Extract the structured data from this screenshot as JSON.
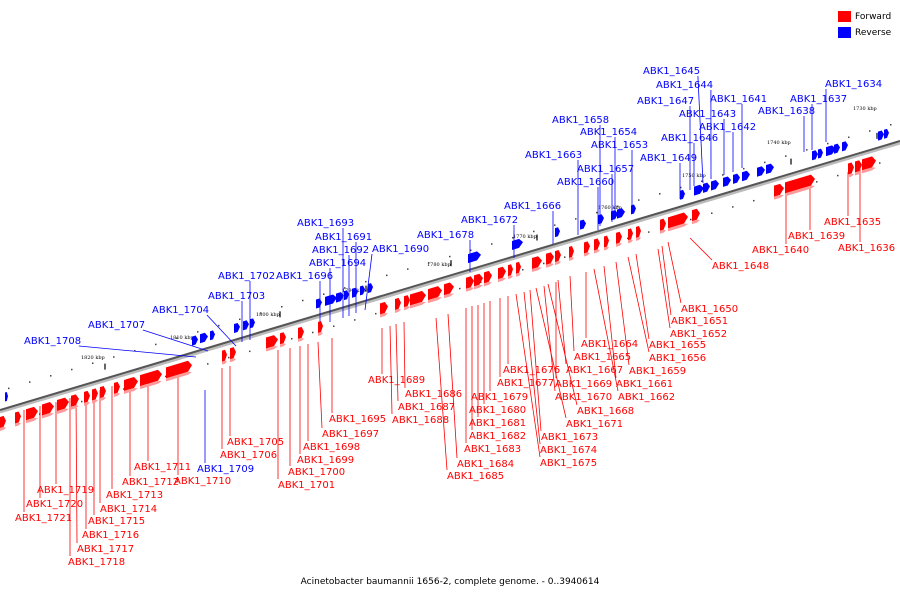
{
  "caption": "Acinetobacter baumannii 1656-2, complete genome. - 0..3940614",
  "legend": {
    "forward_label": "Forward",
    "forward_color": "#ff0000",
    "reverse_label": "Reverse",
    "reverse_color": "#0000ff"
  },
  "ticks": [
    "1730 kbp",
    "1740 kbp",
    "1750 kbp",
    "1760 kbp",
    "1770 kbp",
    "1780 kbp",
    "1790 kbp",
    "1800 kbp",
    "1810 kbp",
    "1820 kbp"
  ],
  "reverse_genes": [
    "ABK1_1634",
    "ABK1_1637",
    "ABK1_1638",
    "ABK1_1641",
    "ABK1_1642",
    "ABK1_1643",
    "ABK1_1644",
    "ABK1_1645",
    "ABK1_1646",
    "ABK1_1647",
    "ABK1_1649",
    "ABK1_1653",
    "ABK1_1654",
    "ABK1_1657",
    "ABK1_1658",
    "ABK1_1660",
    "ABK1_1663",
    "ABK1_1666",
    "ABK1_1672",
    "ABK1_1678",
    "ABK1_1690",
    "ABK1_1691",
    "ABK1_1692",
    "ABK1_1693",
    "ABK1_1694",
    "ABK1_1696",
    "ABK1_1702",
    "ABK1_1703",
    "ABK1_1704",
    "ABK1_1707",
    "ABK1_1708",
    "ABK1_1709"
  ],
  "forward_genes": [
    "ABK1_1635",
    "ABK1_1636",
    "ABK1_1639",
    "ABK1_1640",
    "ABK1_1648",
    "ABK1_1650",
    "ABK1_1651",
    "ABK1_1652",
    "ABK1_1655",
    "ABK1_1656",
    "ABK1_1659",
    "ABK1_1661",
    "ABK1_1662",
    "ABK1_1664",
    "ABK1_1665",
    "ABK1_1667",
    "ABK1_1668",
    "ABK1_1669",
    "ABK1_1670",
    "ABK1_1671",
    "ABK1_1673",
    "ABK1_1674",
    "ABK1_1675",
    "ABK1_1676",
    "ABK1_1677",
    "ABK1_1679",
    "ABK1_1680",
    "ABK1_1681",
    "ABK1_1682",
    "ABK1_1683",
    "ABK1_1684",
    "ABK1_1685",
    "ABK1_1686",
    "ABK1_1687",
    "ABK1_1688",
    "ABK1_1689",
    "ABK1_1695",
    "ABK1_1697",
    "ABK1_1698",
    "ABK1_1699",
    "ABK1_1700",
    "ABK1_1701",
    "ABK1_1705",
    "ABK1_1706",
    "ABK1_1710",
    "ABK1_1711",
    "ABK1_1712",
    "ABK1_1713",
    "ABK1_1714",
    "ABK1_1715",
    "ABK1_1716",
    "ABK1_1717",
    "ABK1_1718",
    "ABK1_1719",
    "ABK1_1720",
    "ABK1_1721"
  ]
}
